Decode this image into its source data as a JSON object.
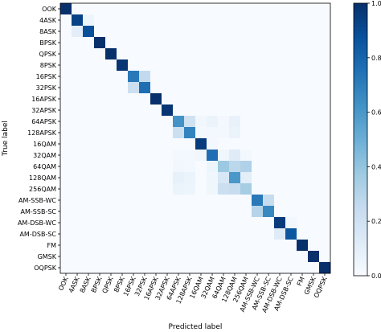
{
  "chart_data": {
    "type": "heatmap",
    "title": "",
    "xlabel": "Predicted label",
    "ylabel": "True label",
    "labels": [
      "OOK",
      "4ASK",
      "8ASK",
      "BPSK",
      "QPSK",
      "8PSK",
      "16PSK",
      "32PSK",
      "16APSK",
      "32APSK",
      "64APSK",
      "128APSK",
      "16QAM",
      "32QAM",
      "64QAM",
      "128QAM",
      "256QAM",
      "AM-SSB-WC",
      "AM-SSB-SC",
      "AM-DSB-WC",
      "AM-DSB-SC",
      "FM",
      "GMSK",
      "OQPSK"
    ],
    "colorbar_range": [
      0,
      1
    ],
    "colorbar_ticks": [
      "0.0",
      "0.2",
      "0.4",
      "0.6",
      "0.8",
      "1.0"
    ],
    "colormap": "Blues",
    "matrix": [
      [
        1,
        0,
        0,
        0,
        0,
        0,
        0,
        0,
        0,
        0,
        0,
        0,
        0,
        0,
        0,
        0,
        0,
        0,
        0,
        0,
        0,
        0,
        0,
        0
      ],
      [
        0,
        0.93,
        0.05,
        0,
        0,
        0,
        0,
        0,
        0,
        0,
        0,
        0,
        0,
        0,
        0,
        0,
        0,
        0,
        0,
        0,
        0,
        0,
        0,
        0
      ],
      [
        0,
        0.1,
        0.88,
        0,
        0,
        0,
        0,
        0,
        0,
        0,
        0,
        0,
        0,
        0,
        0,
        0,
        0,
        0,
        0,
        0,
        0,
        0,
        0,
        0
      ],
      [
        0,
        0,
        0,
        1,
        0,
        0,
        0,
        0,
        0,
        0,
        0,
        0,
        0,
        0,
        0,
        0,
        0,
        0,
        0,
        0,
        0,
        0,
        0,
        0
      ],
      [
        0,
        0,
        0,
        0,
        1,
        0,
        0,
        0,
        0,
        0,
        0,
        0,
        0,
        0,
        0,
        0,
        0,
        0,
        0,
        0,
        0,
        0,
        0,
        0
      ],
      [
        0,
        0,
        0,
        0,
        0,
        0.98,
        0,
        0,
        0,
        0,
        0,
        0,
        0,
        0,
        0,
        0,
        0,
        0,
        0,
        0,
        0,
        0,
        0,
        0
      ],
      [
        0,
        0,
        0,
        0,
        0,
        0,
        0.72,
        0.26,
        0,
        0,
        0,
        0,
        0,
        0,
        0,
        0,
        0,
        0,
        0,
        0,
        0,
        0,
        0,
        0
      ],
      [
        0,
        0,
        0,
        0,
        0,
        0,
        0.22,
        0.76,
        0,
        0,
        0,
        0,
        0,
        0,
        0,
        0,
        0,
        0,
        0,
        0,
        0,
        0,
        0,
        0
      ],
      [
        0,
        0,
        0,
        0,
        0,
        0,
        0,
        0,
        1,
        0,
        0,
        0,
        0,
        0,
        0,
        0,
        0,
        0,
        0,
        0,
        0,
        0,
        0,
        0
      ],
      [
        0,
        0,
        0,
        0,
        0,
        0,
        0,
        0,
        0,
        0.98,
        0,
        0,
        0,
        0,
        0,
        0,
        0,
        0,
        0,
        0,
        0,
        0,
        0,
        0
      ],
      [
        0,
        0,
        0,
        0,
        0,
        0,
        0,
        0,
        0,
        0,
        0.62,
        0.2,
        0.03,
        0.06,
        0.02,
        0.07,
        0,
        0,
        0,
        0,
        0,
        0,
        0,
        0
      ],
      [
        0,
        0,
        0,
        0,
        0,
        0,
        0,
        0,
        0,
        0,
        0.22,
        0.68,
        0.02,
        0.02,
        0.02,
        0.06,
        0,
        0,
        0,
        0,
        0,
        0,
        0,
        0
      ],
      [
        0,
        0,
        0,
        0,
        0,
        0,
        0,
        0,
        0,
        0,
        0,
        0,
        0.96,
        0.02,
        0,
        0,
        0,
        0,
        0,
        0,
        0,
        0,
        0,
        0
      ],
      [
        0,
        0,
        0,
        0,
        0,
        0,
        0,
        0,
        0,
        0,
        0.02,
        0.02,
        0.04,
        0.76,
        0.04,
        0.12,
        0.02,
        0,
        0,
        0,
        0,
        0,
        0,
        0
      ],
      [
        0,
        0,
        0,
        0,
        0,
        0,
        0,
        0,
        0,
        0,
        0.03,
        0.02,
        0,
        0.05,
        0.38,
        0.28,
        0.32,
        0,
        0,
        0,
        0,
        0,
        0,
        0
      ],
      [
        0,
        0,
        0,
        0,
        0,
        0,
        0,
        0,
        0,
        0,
        0.08,
        0.06,
        0,
        0.04,
        0.16,
        0.6,
        0.1,
        0,
        0,
        0,
        0,
        0,
        0,
        0
      ],
      [
        0,
        0,
        0,
        0,
        0,
        0,
        0,
        0,
        0,
        0,
        0.06,
        0.05,
        0,
        0.04,
        0.22,
        0.24,
        0.35,
        0,
        0,
        0,
        0,
        0,
        0,
        0
      ],
      [
        0,
        0,
        0,
        0,
        0,
        0,
        0,
        0,
        0,
        0,
        0,
        0,
        0,
        0,
        0,
        0,
        0,
        0.72,
        0.24,
        0,
        0,
        0,
        0,
        0
      ],
      [
        0,
        0,
        0,
        0,
        0,
        0,
        0,
        0,
        0,
        0,
        0,
        0,
        0,
        0,
        0,
        0,
        0,
        0.3,
        0.66,
        0,
        0,
        0,
        0,
        0
      ],
      [
        0,
        0,
        0,
        0,
        0,
        0,
        0,
        0,
        0,
        0,
        0,
        0,
        0,
        0,
        0,
        0,
        0,
        0,
        0,
        0.96,
        0.03,
        0,
        0,
        0
      ],
      [
        0,
        0,
        0,
        0,
        0,
        0,
        0,
        0,
        0,
        0,
        0,
        0,
        0,
        0,
        0,
        0,
        0,
        0,
        0,
        0.12,
        0.85,
        0,
        0,
        0
      ],
      [
        0,
        0,
        0,
        0,
        0,
        0,
        0,
        0,
        0,
        0,
        0,
        0,
        0,
        0,
        0,
        0,
        0,
        0,
        0,
        0,
        0,
        1,
        0,
        0
      ],
      [
        0,
        0,
        0,
        0,
        0,
        0,
        0,
        0,
        0,
        0,
        0,
        0,
        0,
        0,
        0,
        0,
        0,
        0,
        0,
        0,
        0,
        0,
        1,
        0
      ],
      [
        0,
        0,
        0,
        0,
        0,
        0,
        0,
        0,
        0,
        0,
        0,
        0,
        0,
        0,
        0,
        0,
        0,
        0,
        0,
        0,
        0,
        0,
        0,
        1
      ]
    ]
  }
}
